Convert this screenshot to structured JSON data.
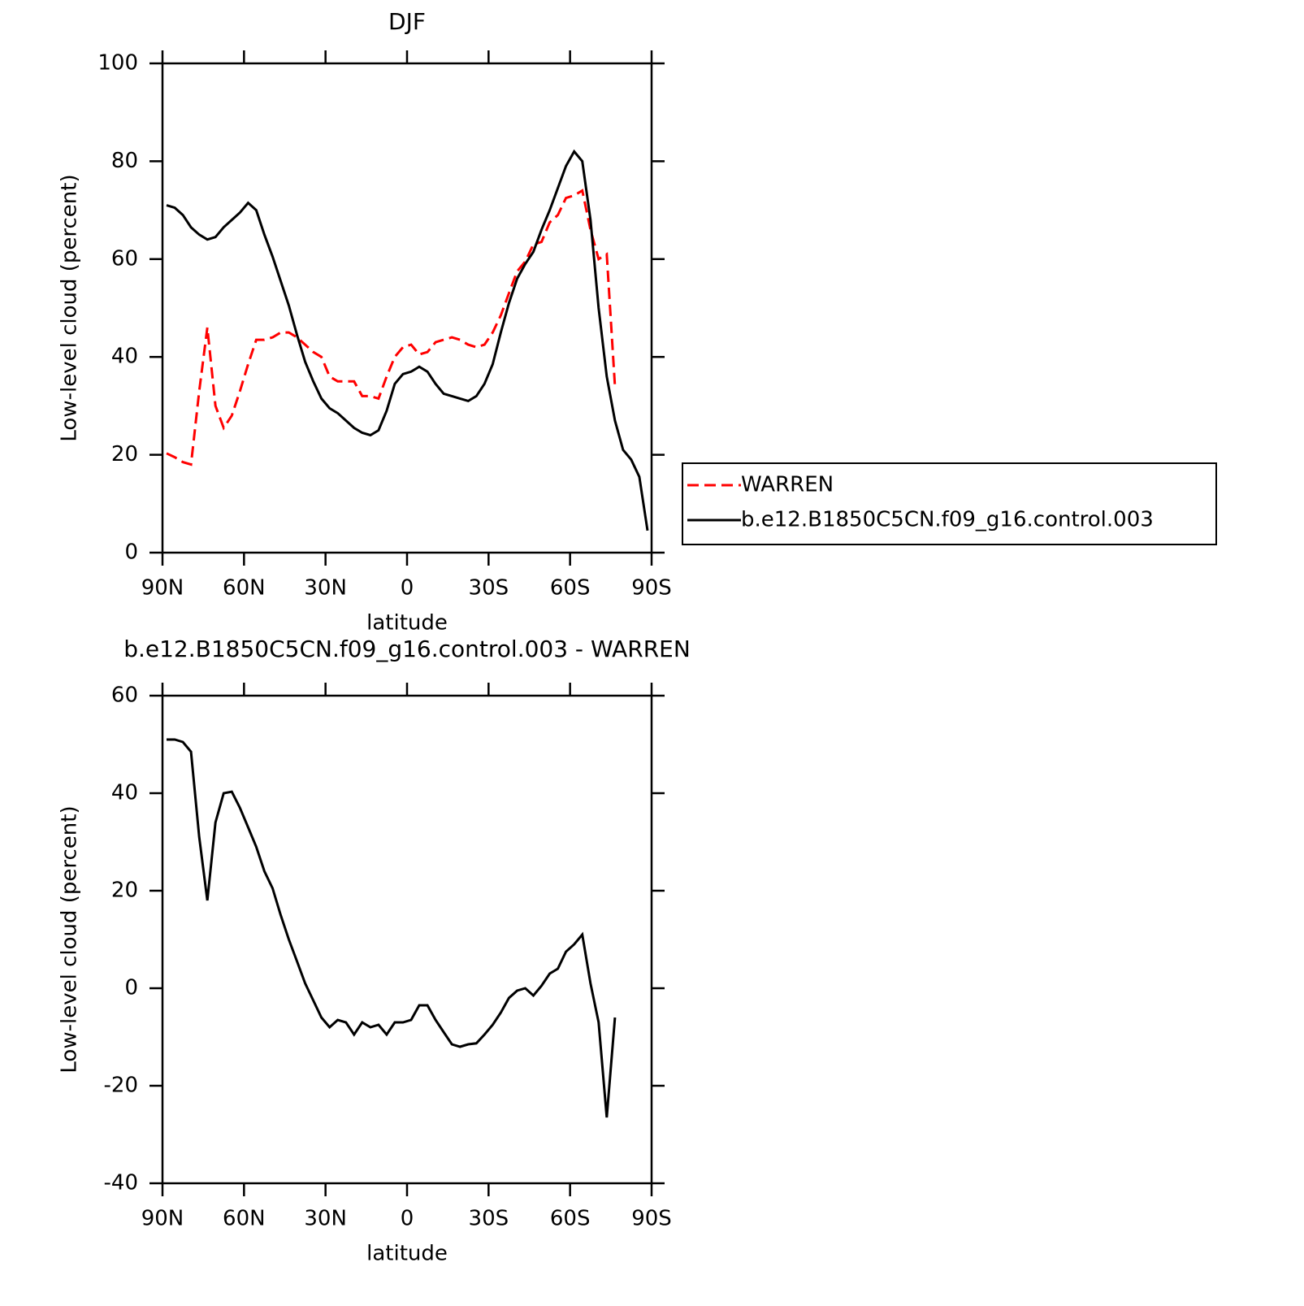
{
  "chart_data": [
    {
      "type": "line",
      "title": "DJF",
      "xlabel": "latitude",
      "ylabel": "Low-level cloud (percent)",
      "x": [
        88.5,
        85.5,
        82.5,
        79.5,
        76.5,
        73.5,
        70.5,
        67.5,
        64.5,
        61.5,
        58.5,
        55.5,
        52.5,
        49.5,
        46.5,
        43.5,
        40.5,
        37.5,
        34.5,
        31.5,
        28.5,
        25.5,
        22.5,
        19.5,
        16.5,
        13.5,
        10.5,
        7.5,
        4.5,
        1.5,
        -1.5,
        -4.5,
        -7.5,
        -10.5,
        -13.5,
        -16.5,
        -19.5,
        -22.5,
        -25.5,
        -28.5,
        -31.5,
        -34.5,
        -37.5,
        -40.5,
        -43.5,
        -46.5,
        -49.5,
        -52.5,
        -55.5,
        -58.5,
        -61.5,
        -64.5,
        -67.5,
        -70.5,
        -73.5,
        -76.5,
        -79.5,
        -82.5,
        -85.5,
        -88.5
      ],
      "series": [
        {
          "name": "WARREN",
          "color": "#ff0000",
          "style": "dashed",
          "values": [
            20.3,
            19.5,
            18.5,
            18,
            33,
            46,
            30,
            25.5,
            28,
            33,
            38.5,
            43.5,
            43.5,
            44,
            45,
            45,
            44,
            42.5,
            41,
            40,
            36,
            35,
            35,
            35,
            32,
            32,
            31.5,
            36,
            40,
            42,
            42.5,
            40.5,
            41,
            43,
            43.5,
            44,
            43.5,
            42.5,
            42,
            42.5,
            45,
            48.5,
            53,
            57.5,
            59.5,
            63,
            63.5,
            67.5,
            69,
            72.5,
            73,
            74,
            66,
            60,
            61,
            34,
            null,
            null,
            null,
            null
          ]
        },
        {
          "name": "b.e12.B1850C5CN.f09_g16.control.003",
          "color": "#000000",
          "style": "solid",
          "values": [
            71,
            70.5,
            69,
            66.5,
            65,
            64,
            64.5,
            66.5,
            68,
            69.5,
            71.5,
            70,
            65,
            60.5,
            55.5,
            50.5,
            44.5,
            39,
            35,
            31.5,
            29.5,
            28.5,
            27,
            25.5,
            24.5,
            24,
            25,
            29,
            34.5,
            36.5,
            37,
            38,
            37,
            34.5,
            32.5,
            32,
            31.5,
            31,
            32,
            34.5,
            38.5,
            45,
            51,
            56,
            59,
            61.5,
            66,
            70,
            74.5,
            79,
            82,
            80,
            68,
            50,
            36,
            27,
            21,
            19,
            15.5,
            4.5
          ]
        }
      ],
      "xlim": [
        90,
        -90
      ],
      "xticks": [
        {
          "value": 90,
          "label": "90N"
        },
        {
          "value": 60,
          "label": "60N"
        },
        {
          "value": 30,
          "label": "30N"
        },
        0,
        {
          "value": -30,
          "label": "30S"
        },
        {
          "value": -60,
          "label": "60S"
        },
        {
          "value": -90,
          "label": "90S"
        }
      ],
      "ylim": [
        0,
        100
      ],
      "yticks": [
        0,
        20,
        40,
        60,
        80,
        100
      ],
      "legend": "right"
    },
    {
      "type": "line",
      "title": "b.e12.B1850C5CN.f09_g16.control.003 - WARREN",
      "xlabel": "latitude",
      "ylabel": "Low-level cloud (percent)",
      "x": [
        88.5,
        85.5,
        82.5,
        79.5,
        76.5,
        73.5,
        70.5,
        67.5,
        64.5,
        61.5,
        58.5,
        55.5,
        52.5,
        49.5,
        46.5,
        43.5,
        40.5,
        37.5,
        34.5,
        31.5,
        28.5,
        25.5,
        22.5,
        19.5,
        16.5,
        13.5,
        10.5,
        7.5,
        4.5,
        1.5,
        -1.5,
        -4.5,
        -7.5,
        -10.5,
        -13.5,
        -16.5,
        -19.5,
        -22.5,
        -25.5,
        -28.5,
        -31.5,
        -34.5,
        -37.5,
        -40.5,
        -43.5,
        -46.5,
        -49.5,
        -52.5,
        -55.5,
        -58.5,
        -61.5,
        -64.5,
        -67.5,
        -70.5,
        -73.5,
        -76.5,
        -79.5,
        -82.5,
        -85.5,
        -88.5
      ],
      "series": [
        {
          "color": "#000000",
          "style": "solid",
          "values": [
            51,
            51,
            50.5,
            48.5,
            31,
            18,
            34,
            40,
            40.3,
            37,
            33,
            29,
            24,
            20.5,
            15,
            10,
            5.5,
            1,
            -2.5,
            -6,
            -8,
            -6.5,
            -7,
            -9.5,
            -7,
            -8,
            -7.5,
            -9.5,
            -7,
            -7,
            -6.5,
            -3.5,
            -3.5,
            -6.5,
            -9,
            -11.5,
            -12,
            -11.5,
            -11.3,
            -9.5,
            -7.5,
            -5,
            -2,
            -0.5,
            0,
            -1.5,
            0.5,
            3,
            4,
            7.5,
            9,
            11,
            1,
            -7,
            -26.5,
            -6,
            null,
            null,
            null,
            null
          ]
        }
      ],
      "xlim": [
        90,
        -90
      ],
      "xticks": [
        {
          "value": 90,
          "label": "90N"
        },
        {
          "value": 60,
          "label": "60N"
        },
        {
          "value": 30,
          "label": "30N"
        },
        0,
        {
          "value": -30,
          "label": "30S"
        },
        {
          "value": -60,
          "label": "60S"
        },
        {
          "value": -90,
          "label": "90S"
        }
      ],
      "ylim": [
        -40,
        60
      ],
      "yticks": [
        -40,
        -20,
        0,
        20,
        40,
        60
      ]
    }
  ]
}
